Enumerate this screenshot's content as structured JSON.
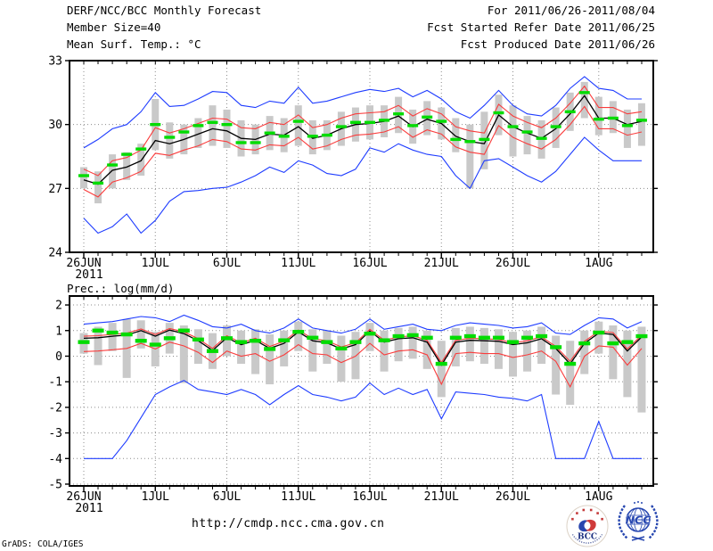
{
  "header": {
    "left_lines": [
      "DERF/NCC/BCC Monthly Forecast",
      "Member Size=40",
      "Mean Surf. Temp.: °C"
    ],
    "right_lines": [
      "For 2011/06/26-2011/08/04",
      "Fcst Started Refer Date 2011/06/25",
      "Fcst Produced Date 2011/06/26"
    ]
  },
  "colors": {
    "max_min": "#1e3cff",
    "std": "#fa3c3c",
    "mean": "#000000",
    "obs": "#00dc00",
    "spread_bar": "#c9c9c9",
    "grid": "#8c8c8c",
    "axis": "#000000"
  },
  "footer": {
    "url": "http://cmdp.ncc.cma.gov.cn",
    "credit": "GrADS: COLA/IGES"
  },
  "logos": {
    "bcc": "BCC",
    "ncc": "NCC"
  },
  "chart_data": [
    {
      "type": "line",
      "name": "temperature",
      "title": "Mean Surf. Temp.: °C",
      "xlabel": "",
      "ylabel": "°C",
      "ylim": [
        24,
        33
      ],
      "y_ticks": [
        33,
        30,
        27,
        24
      ],
      "y_gridlines": [
        30,
        27
      ],
      "n_days": 40,
      "x_ticks": [
        {
          "label": "26JUN",
          "sub": "2011",
          "day": 0
        },
        {
          "label": "1JUL",
          "day": 5
        },
        {
          "label": "6JUL",
          "day": 10
        },
        {
          "label": "11JUL",
          "day": 15
        },
        {
          "label": "16JUL",
          "day": 20
        },
        {
          "label": "21JUL",
          "day": 25
        },
        {
          "label": "26JUL",
          "day": 30
        },
        {
          "label": "1AUG",
          "day": 36
        }
      ],
      "series": [
        {
          "name": "ensemble-max",
          "color": "max_min",
          "values": [
            28.9,
            29.3,
            29.8,
            30.0,
            30.6,
            31.5,
            30.85,
            30.9,
            31.2,
            31.55,
            31.5,
            30.9,
            30.8,
            31.1,
            31.0,
            31.75,
            31.0,
            31.1,
            31.3,
            31.5,
            31.65,
            31.55,
            31.7,
            31.3,
            31.6,
            31.2,
            30.6,
            30.3,
            30.9,
            31.6,
            30.9,
            30.5,
            30.4,
            30.9,
            31.7,
            32.25,
            31.7,
            31.6,
            31.2,
            31.2
          ]
        },
        {
          "name": "ensemble-min",
          "color": "max_min",
          "values": [
            25.6,
            24.9,
            25.2,
            25.8,
            24.9,
            25.5,
            26.4,
            26.85,
            26.9,
            27.0,
            27.05,
            27.3,
            27.6,
            28.0,
            27.75,
            28.3,
            28.1,
            27.7,
            27.6,
            27.9,
            28.9,
            28.7,
            29.1,
            28.8,
            28.6,
            28.5,
            27.6,
            27.0,
            28.3,
            28.4,
            28.0,
            27.6,
            27.3,
            27.8,
            28.6,
            29.4,
            28.8,
            28.3,
            28.3,
            28.3
          ]
        },
        {
          "name": "plus-sigma",
          "color": "std",
          "values": [
            27.9,
            27.6,
            28.3,
            28.45,
            28.8,
            29.85,
            29.6,
            29.8,
            30.05,
            30.3,
            30.25,
            29.85,
            29.8,
            30.1,
            30.0,
            30.45,
            29.85,
            30.0,
            30.3,
            30.5,
            30.55,
            30.6,
            30.9,
            30.4,
            30.75,
            30.5,
            29.9,
            29.7,
            29.6,
            30.95,
            30.4,
            30.1,
            29.85,
            30.3,
            31.0,
            31.8,
            30.8,
            30.8,
            30.5,
            30.6
          ]
        },
        {
          "name": "minus-sigma",
          "color": "std",
          "values": [
            26.95,
            26.6,
            27.3,
            27.5,
            27.8,
            28.65,
            28.55,
            28.8,
            29.0,
            29.3,
            29.2,
            28.85,
            28.8,
            29.05,
            29.0,
            29.4,
            28.85,
            29.0,
            29.3,
            29.5,
            29.55,
            29.65,
            29.9,
            29.4,
            29.75,
            29.55,
            28.95,
            28.7,
            28.6,
            29.95,
            29.4,
            29.1,
            28.85,
            29.3,
            30.0,
            30.85,
            29.8,
            29.8,
            29.5,
            29.65
          ]
        },
        {
          "name": "ensemble-mean",
          "color": "mean",
          "values": [
            27.4,
            27.2,
            27.85,
            28.0,
            28.3,
            29.25,
            29.1,
            29.3,
            29.55,
            29.8,
            29.7,
            29.35,
            29.3,
            29.55,
            29.5,
            29.9,
            29.35,
            29.5,
            29.8,
            30.0,
            30.05,
            30.15,
            30.4,
            29.9,
            30.25,
            30.05,
            29.45,
            29.2,
            29.1,
            30.45,
            29.9,
            29.6,
            29.35,
            29.8,
            30.5,
            31.35,
            30.3,
            30.3,
            30.0,
            30.15
          ]
        }
      ],
      "dashes": {
        "name": "observation",
        "color": "obs",
        "values": [
          27.6,
          27.25,
          28.1,
          28.6,
          28.85,
          30.0,
          29.4,
          29.65,
          29.95,
          30.1,
          30.0,
          29.15,
          29.15,
          29.6,
          29.45,
          30.15,
          29.45,
          29.5,
          29.9,
          30.1,
          30.1,
          30.2,
          30.5,
          29.95,
          30.35,
          30.15,
          29.3,
          29.2,
          29.3,
          30.55,
          29.9,
          29.65,
          29.35,
          29.9,
          30.6,
          31.5,
          30.25,
          30.3,
          29.95,
          30.2
        ]
      },
      "bars": [
        [
          27.0,
          28.0
        ],
        [
          26.3,
          27.8
        ],
        [
          27.0,
          28.6
        ],
        [
          27.4,
          28.7
        ],
        [
          27.6,
          29.1
        ],
        [
          28.8,
          31.2
        ],
        [
          28.4,
          30.1
        ],
        [
          28.6,
          30.0
        ],
        [
          28.9,
          30.3
        ],
        [
          29.0,
          30.9
        ],
        [
          28.9,
          30.7
        ],
        [
          28.5,
          30.2
        ],
        [
          28.6,
          30.0
        ],
        [
          28.8,
          30.4
        ],
        [
          28.7,
          30.3
        ],
        [
          29.0,
          30.9
        ],
        [
          28.6,
          30.2
        ],
        [
          28.8,
          30.2
        ],
        [
          29.0,
          30.6
        ],
        [
          29.2,
          30.8
        ],
        [
          29.3,
          30.9
        ],
        [
          29.4,
          30.9
        ],
        [
          29.6,
          31.3
        ],
        [
          29.1,
          30.7
        ],
        [
          29.5,
          31.1
        ],
        [
          29.3,
          30.8
        ],
        [
          28.7,
          30.3
        ],
        [
          27.0,
          30.0
        ],
        [
          27.9,
          30.6
        ],
        [
          29.5,
          31.4
        ],
        [
          28.5,
          30.9
        ],
        [
          28.6,
          30.4
        ],
        [
          28.4,
          30.2
        ],
        [
          28.9,
          30.8
        ],
        [
          29.7,
          31.5
        ],
        [
          30.3,
          32.0
        ],
        [
          29.5,
          31.3
        ],
        [
          29.6,
          31.1
        ],
        [
          28.9,
          30.7
        ],
        [
          29.0,
          31.0
        ]
      ]
    },
    {
      "type": "line",
      "name": "precipitation",
      "title": "Prec.: log(mm/d)",
      "xlabel": "",
      "ylabel": "log(mm/d)",
      "ylim": [
        -5,
        2
      ],
      "y_ticks": [
        2,
        1,
        0,
        -1,
        -2,
        -3,
        -4,
        -5
      ],
      "y_gridlines": [
        2,
        1,
        0,
        -1,
        -2,
        -3,
        -4,
        -5
      ],
      "n_days": 40,
      "x_ticks": [
        {
          "label": "26JUN",
          "sub": "2011",
          "day": 0
        },
        {
          "label": "1JUL",
          "day": 5
        },
        {
          "label": "6JUL",
          "day": 10
        },
        {
          "label": "11JUL",
          "day": 15
        },
        {
          "label": "16JUL",
          "day": 20
        },
        {
          "label": "21JUL",
          "day": 25
        },
        {
          "label": "26JUL",
          "day": 30
        },
        {
          "label": "1AUG",
          "day": 36
        }
      ],
      "series": [
        {
          "name": "ensemble-max",
          "color": "max_min",
          "values": [
            1.25,
            1.3,
            1.35,
            1.45,
            1.55,
            1.5,
            1.35,
            1.6,
            1.4,
            1.15,
            1.1,
            1.25,
            1.0,
            0.9,
            1.1,
            1.45,
            1.1,
            1.0,
            0.9,
            1.05,
            1.45,
            1.05,
            1.15,
            1.25,
            1.05,
            1.0,
            1.2,
            1.3,
            1.25,
            1.2,
            1.1,
            1.15,
            1.3,
            0.9,
            0.85,
            1.2,
            1.5,
            1.45,
            1.1,
            1.35
          ]
        },
        {
          "name": "ensemble-min",
          "color": "max_min",
          "values": [
            -4,
            -4,
            -4,
            -3.3,
            -2.4,
            -1.5,
            -1.2,
            -0.95,
            -1.3,
            -1.4,
            -1.5,
            -1.3,
            -1.5,
            -1.9,
            -1.5,
            -1.15,
            -1.5,
            -1.6,
            -1.75,
            -1.6,
            -1.05,
            -1.5,
            -1.25,
            -1.5,
            -1.3,
            -2.45,
            -1.4,
            -1.45,
            -1.5,
            -1.6,
            -1.65,
            -1.75,
            -1.5,
            -4,
            -4,
            -4,
            -2.55,
            -4,
            -4,
            -4
          ]
        },
        {
          "name": "plus-sigma",
          "color": "std",
          "values": [
            0.78,
            0.8,
            0.85,
            0.9,
            1.06,
            0.85,
            1.08,
            0.95,
            0.68,
            0.3,
            0.8,
            0.52,
            0.7,
            0.38,
            0.58,
            1.02,
            0.68,
            0.6,
            0.36,
            0.52,
            1.05,
            0.62,
            0.75,
            0.8,
            0.62,
            -0.25,
            0.62,
            0.7,
            0.68,
            0.65,
            0.52,
            0.6,
            0.75,
            0.38,
            -0.2,
            0.58,
            0.97,
            0.92,
            0.28,
            0.82
          ]
        },
        {
          "name": "minus-sigma",
          "color": "std",
          "values": [
            0.18,
            0.2,
            0.25,
            0.3,
            0.5,
            0.28,
            0.55,
            0.4,
            0.15,
            -0.25,
            0.2,
            0.0,
            0.1,
            -0.2,
            0.05,
            0.45,
            0.1,
            0.05,
            -0.25,
            0.0,
            0.5,
            0.05,
            0.2,
            0.25,
            0.05,
            -1.1,
            0.1,
            0.15,
            0.1,
            0.1,
            -0.05,
            0.05,
            0.2,
            -0.2,
            -1.2,
            0.0,
            0.4,
            0.35,
            -0.35,
            0.3
          ]
        },
        {
          "name": "ensemble-mean",
          "color": "mean",
          "values": [
            0.7,
            0.72,
            0.78,
            0.82,
            1.0,
            0.78,
            1.02,
            0.88,
            0.6,
            0.22,
            0.72,
            0.45,
            0.62,
            0.3,
            0.5,
            0.95,
            0.6,
            0.52,
            0.28,
            0.45,
            0.98,
            0.55,
            0.68,
            0.72,
            0.55,
            -0.35,
            0.55,
            0.62,
            0.6,
            0.58,
            0.45,
            0.52,
            0.68,
            0.3,
            -0.3,
            0.5,
            0.9,
            0.85,
            0.2,
            0.75
          ]
        }
      ],
      "dashes": {
        "name": "observation",
        "color": "obs",
        "values": [
          0.55,
          1.0,
          0.92,
          0.85,
          0.6,
          0.45,
          0.7,
          1.0,
          0.65,
          0.2,
          0.7,
          0.55,
          0.6,
          0.28,
          0.62,
          0.95,
          0.72,
          0.55,
          0.3,
          0.55,
          0.88,
          0.62,
          0.78,
          0.82,
          0.72,
          -0.3,
          0.72,
          0.78,
          0.72,
          0.72,
          0.55,
          0.72,
          0.78,
          0.35,
          -0.3,
          0.5,
          0.92,
          0.5,
          0.55,
          0.78
        ]
      },
      "bars": [
        [
          0.1,
          0.9
        ],
        [
          -0.35,
          1.15
        ],
        [
          0.2,
          1.3
        ],
        [
          -0.85,
          1.45
        ],
        [
          0.3,
          1.4
        ],
        [
          -0.4,
          0.95
        ],
        [
          0.1,
          1.3
        ],
        [
          -1.05,
          1.2
        ],
        [
          -0.3,
          1.05
        ],
        [
          -0.5,
          0.9
        ],
        [
          0.0,
          1.2
        ],
        [
          -0.3,
          1.0
        ],
        [
          -0.7,
          1.05
        ],
        [
          -1.1,
          0.85
        ],
        [
          -0.4,
          1.0
        ],
        [
          0.2,
          1.35
        ],
        [
          -0.6,
          1.05
        ],
        [
          -0.3,
          1.0
        ],
        [
          -1.0,
          0.8
        ],
        [
          -0.9,
          0.95
        ],
        [
          0.2,
          1.3
        ],
        [
          -0.6,
          1.0
        ],
        [
          -0.2,
          1.1
        ],
        [
          -0.1,
          1.15
        ],
        [
          -0.5,
          1.0
        ],
        [
          -1.6,
          0.6
        ],
        [
          -0.4,
          1.1
        ],
        [
          -0.2,
          1.15
        ],
        [
          -0.3,
          1.1
        ],
        [
          -0.5,
          1.05
        ],
        [
          -0.8,
          0.95
        ],
        [
          -0.6,
          1.0
        ],
        [
          -0.3,
          1.15
        ],
        [
          -1.5,
          0.8
        ],
        [
          -1.9,
          0.6
        ],
        [
          -0.7,
          1.0
        ],
        [
          0.1,
          1.35
        ],
        [
          -0.9,
          1.2
        ],
        [
          -1.6,
          1.0
        ],
        [
          -2.2,
          1.15
        ]
      ]
    }
  ]
}
